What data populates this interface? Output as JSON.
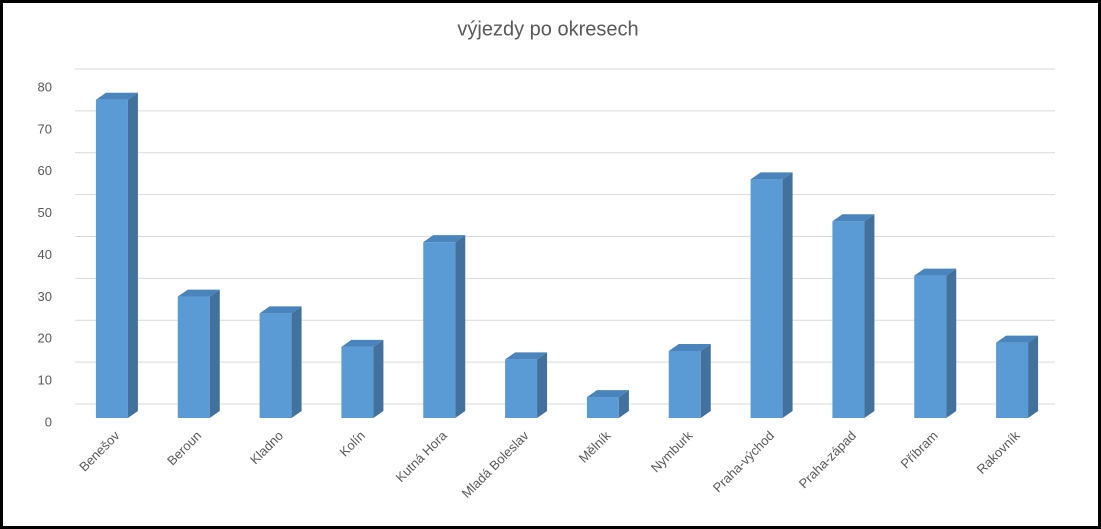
{
  "chart_data": {
    "type": "bar3d",
    "title": "výjezdy po okresech",
    "categories": [
      "Benešov",
      "Beroun",
      "Kladno",
      "Kolín",
      "Kutná Hora",
      "Mladá Boleslav",
      "Mělník",
      "Nymburk",
      "Praha-východ",
      "Praha-západ",
      "Příbram",
      "Rakovník"
    ],
    "values": [
      76,
      29,
      25,
      17,
      42,
      14,
      5,
      16,
      57,
      47,
      34,
      18
    ],
    "color": "#5b9bd5",
    "ylim": [
      0,
      80
    ],
    "yticks": [
      0,
      10,
      20,
      30,
      40,
      50,
      60,
      70,
      80
    ],
    "grid": true
  }
}
